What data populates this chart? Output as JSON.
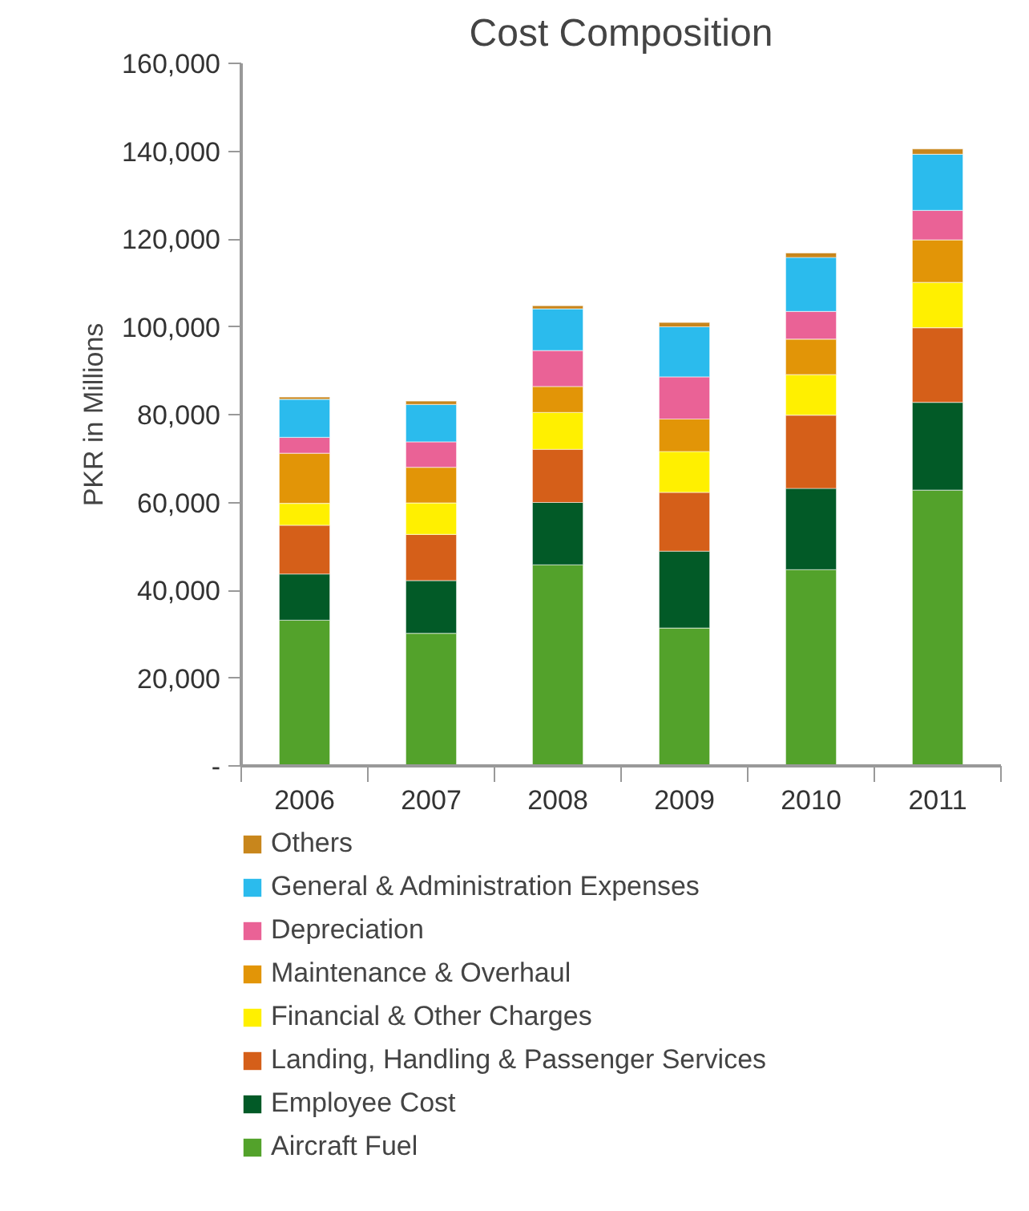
{
  "chart_data": {
    "type": "bar",
    "title": "Cost Composition",
    "ylabel": "PKR in Millions",
    "stacked": true,
    "categories": [
      "2006",
      "2007",
      "2008",
      "2009",
      "2010",
      "2011"
    ],
    "series": [
      {
        "name": "Aircraft Fuel",
        "color": "#53a22b",
        "values": [
          33200,
          30200,
          45800,
          31400,
          44700,
          62800
        ]
      },
      {
        "name": "Employee Cost",
        "color": "#025a27",
        "values": [
          10500,
          12000,
          14200,
          17500,
          18500,
          20000
        ]
      },
      {
        "name": "Landing, Handling & Passenger Services",
        "color": "#d55f19",
        "values": [
          11100,
          10500,
          12100,
          13400,
          16700,
          17000
        ]
      },
      {
        "name": "Financial & Other Charges",
        "color": "#fff000",
        "values": [
          5000,
          7200,
          8400,
          9300,
          9200,
          10300
        ]
      },
      {
        "name": "Maintenance & Overhaul",
        "color": "#e29507",
        "values": [
          11400,
          8100,
          5900,
          7400,
          8100,
          9700
        ]
      },
      {
        "name": "Depreciation",
        "color": "#ea6296",
        "values": [
          3600,
          5800,
          8200,
          9600,
          6300,
          6700
        ]
      },
      {
        "name": "General & Administration Expenses",
        "color": "#2bbbed",
        "values": [
          8700,
          8500,
          9500,
          11400,
          12300,
          12800
        ]
      },
      {
        "name": "Others",
        "color": "#c8861c",
        "values": [
          500,
          800,
          700,
          1000,
          1000,
          1200
        ]
      }
    ],
    "ylim": [
      0,
      160000
    ],
    "yticks": [
      {
        "value": 0,
        "label": "-"
      },
      {
        "value": 20000,
        "label": "20,000"
      },
      {
        "value": 40000,
        "label": "40,000"
      },
      {
        "value": 60000,
        "label": "60,000"
      },
      {
        "value": 80000,
        "label": "80,000"
      },
      {
        "value": 100000,
        "label": "100,000"
      },
      {
        "value": 120000,
        "label": "120,000"
      },
      {
        "value": 140000,
        "label": "140,000"
      },
      {
        "value": 160000,
        "label": "160,000"
      }
    ],
    "grid": false,
    "legend": "bottom"
  }
}
